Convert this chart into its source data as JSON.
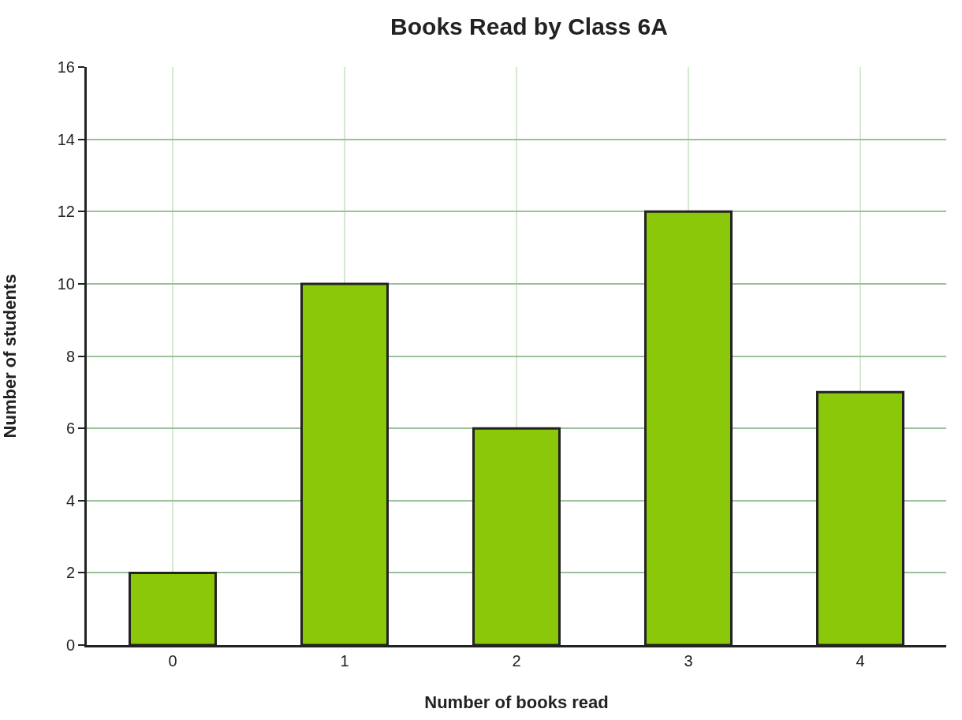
{
  "chart_data": {
    "type": "bar",
    "title": "Books Read by Class 6A",
    "xlabel": "Number of books read",
    "ylabel": "Number of students",
    "categories": [
      "0",
      "1",
      "2",
      "3",
      "4"
    ],
    "values": [
      2,
      10,
      6,
      12,
      7
    ],
    "color": "#8cc80a",
    "ylim": [
      0,
      16
    ],
    "yticks": [
      0,
      2,
      4,
      6,
      8,
      10,
      12,
      14,
      16
    ],
    "grid": true
  }
}
